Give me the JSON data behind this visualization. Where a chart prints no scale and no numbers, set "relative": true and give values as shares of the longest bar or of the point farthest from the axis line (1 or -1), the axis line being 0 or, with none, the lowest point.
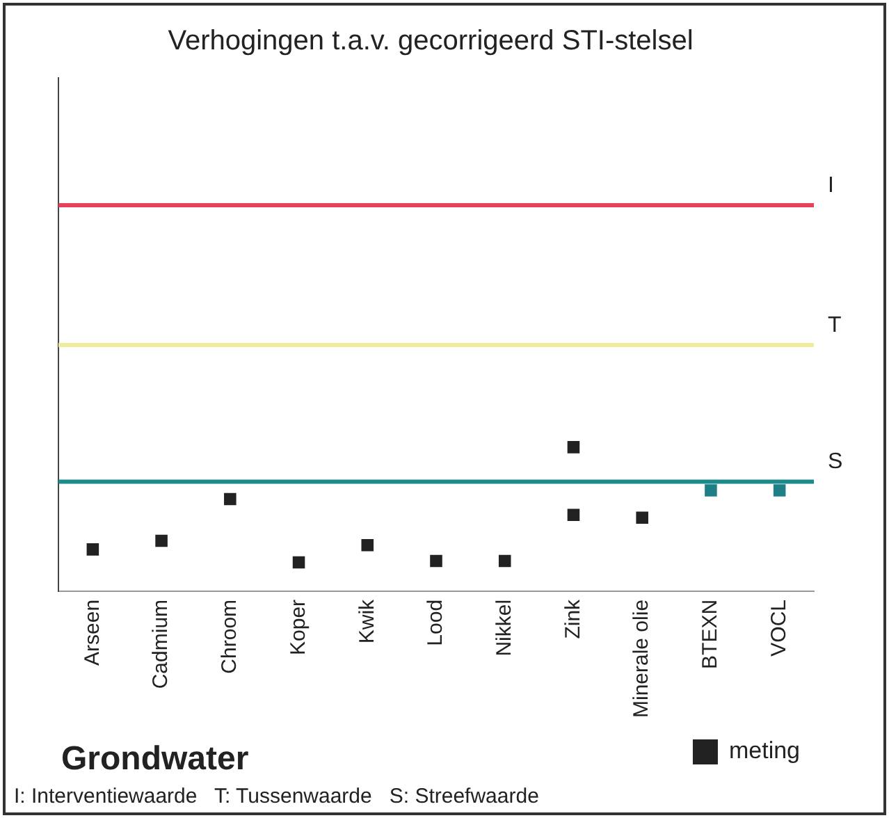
{
  "chart_data": {
    "type": "scatter",
    "title": "Verhogingen t.a.v. gecorrigeerd STI-stelsel",
    "categories": [
      "Arseen",
      "Cadmium",
      "Chroom",
      "Koper",
      "Kwik",
      "Lood",
      "Nikkel",
      "Zink",
      "Minerale olie",
      "BTEXN",
      "VOCL"
    ],
    "relative": true,
    "marker": "square",
    "legend": "bottom right",
    "tick_labels": "x",
    "grid": false,
    "series": [
      {
        "name": "meting",
        "color": "#222222",
        "colors": [
          "#222222",
          "#222222",
          "#222222",
          "#222222",
          "#222222",
          "#222222",
          "#222222",
          "#222222",
          "#222222",
          "#1f7f86",
          "#1f7f86"
        ],
        "values": [
          0.29,
          0.35,
          0.64,
          0.2,
          0.32,
          0.21,
          0.21,
          0.53,
          0.51,
          0.7,
          0.7
        ]
      },
      {
        "color": "#222222",
        "x": [
          "Zink"
        ],
        "values": [
          1
        ]
      }
    ],
    "ref_lines": [
      {
        "axis": "y",
        "value": 2.68,
        "label": "I",
        "color": "#e8405a"
      },
      {
        "axis": "y",
        "value": 1.71,
        "label": "T",
        "color": "#f0eb9a"
      },
      {
        "axis": "y",
        "value": 0.76,
        "label": "S",
        "color": "#1a8a8a"
      }
    ],
    "annotations": [
      "Grondwater",
      "I: Interventiewaarde   T: Tussenwaarde   S: Streefwaarde"
    ]
  }
}
